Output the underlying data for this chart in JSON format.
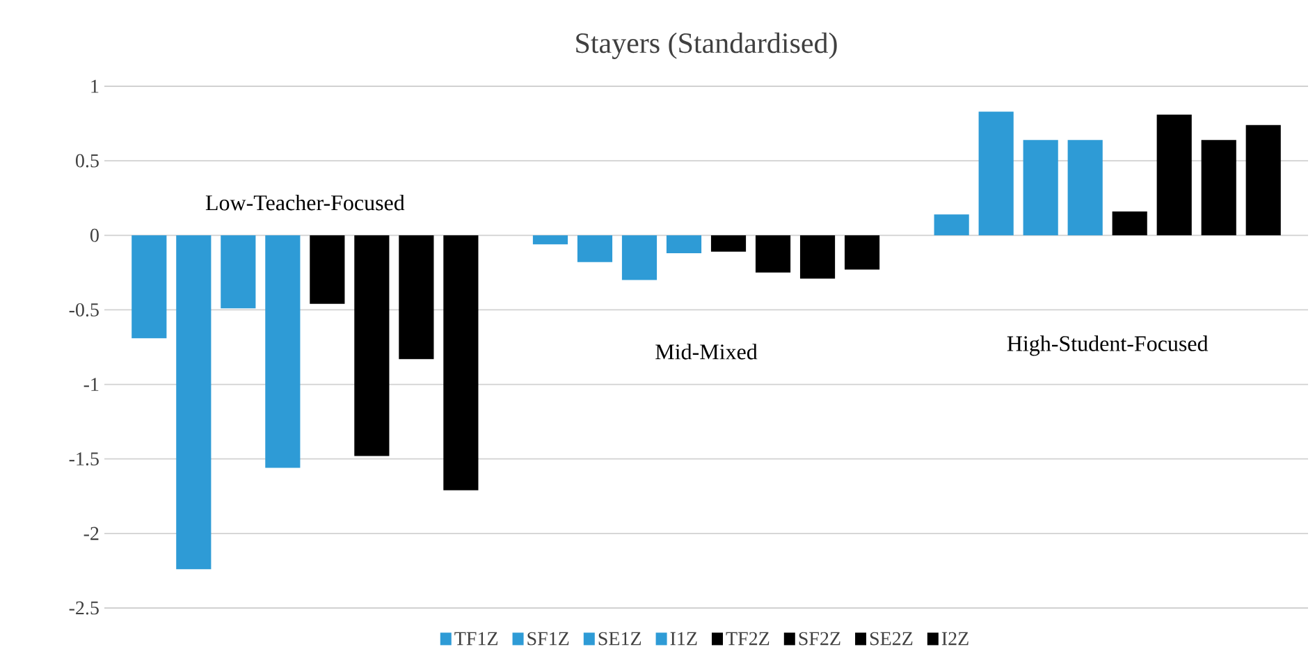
{
  "chart_data": {
    "type": "bar",
    "title": "Stayers (Standardised)",
    "categories": [
      "Low-Teacher-Focused",
      "Mid-Mixed",
      "High-Student-Focused"
    ],
    "series": [
      {
        "name": "TF1Z",
        "color": "#2e9bd6",
        "values": [
          -0.69,
          -0.06,
          0.14
        ]
      },
      {
        "name": "SF1Z",
        "color": "#2e9bd6",
        "values": [
          -2.24,
          -0.18,
          0.83
        ]
      },
      {
        "name": "SE1Z",
        "color": "#2e9bd6",
        "values": [
          -0.49,
          -0.3,
          0.64
        ]
      },
      {
        "name": "I1Z",
        "color": "#2e9bd6",
        "values": [
          -1.56,
          -0.12,
          0.64
        ]
      },
      {
        "name": "TF2Z",
        "color": "#000000",
        "values": [
          -0.46,
          -0.11,
          0.16
        ]
      },
      {
        "name": "SF2Z",
        "color": "#000000",
        "values": [
          -1.48,
          -0.25,
          0.81
        ]
      },
      {
        "name": "SE2Z",
        "color": "#000000",
        "values": [
          -0.83,
          -0.29,
          0.64
        ]
      },
      {
        "name": "I2Z",
        "color": "#000000",
        "values": [
          -1.71,
          -0.23,
          0.74
        ]
      }
    ],
    "ylim": [
      -2.5,
      1
    ],
    "yticks": [
      -2.5,
      -2,
      -1.5,
      -1,
      -0.5,
      0,
      0.5,
      1
    ],
    "grid": "y",
    "legend": "bottom"
  }
}
